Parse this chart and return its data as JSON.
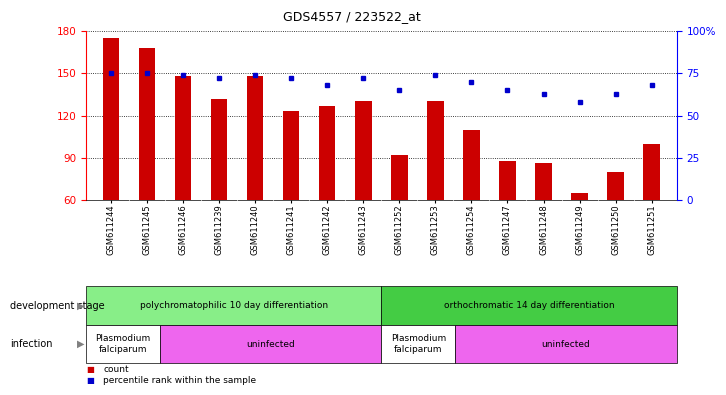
{
  "title": "GDS4557 / 223522_at",
  "samples": [
    "GSM611244",
    "GSM611245",
    "GSM611246",
    "GSM611239",
    "GSM611240",
    "GSM611241",
    "GSM611242",
    "GSM611243",
    "GSM611252",
    "GSM611253",
    "GSM611254",
    "GSM611247",
    "GSM611248",
    "GSM611249",
    "GSM611250",
    "GSM611251"
  ],
  "counts": [
    175,
    168,
    148,
    132,
    148,
    123,
    127,
    130,
    92,
    130,
    110,
    88,
    86,
    65,
    80,
    100
  ],
  "percentiles": [
    75,
    75,
    74,
    72,
    74,
    72,
    68,
    72,
    65,
    74,
    70,
    65,
    63,
    58,
    63,
    68
  ],
  "ylim_left": [
    60,
    180
  ],
  "ylim_right": [
    0,
    100
  ],
  "yticks_left": [
    60,
    90,
    120,
    150,
    180
  ],
  "yticks_right": [
    0,
    25,
    50,
    75,
    100
  ],
  "bar_color": "#cc0000",
  "dot_color": "#0000cc",
  "xticklabel_bg": "#d8d8d8",
  "dev_stage_groups": [
    {
      "label": "polychromatophilic 10 day differentiation",
      "start": 0,
      "end": 7,
      "color": "#88ee88"
    },
    {
      "label": "orthochromatic 14 day differentiation",
      "start": 8,
      "end": 15,
      "color": "#44cc44"
    }
  ],
  "infection_groups": [
    {
      "label": "Plasmodium\nfalciparum",
      "start": 0,
      "end": 1,
      "color": "#ffffff"
    },
    {
      "label": "uninfected",
      "start": 2,
      "end": 7,
      "color": "#ee66ee"
    },
    {
      "label": "Plasmodium\nfalciparum",
      "start": 8,
      "end": 9,
      "color": "#ffffff"
    },
    {
      "label": "uninfected",
      "start": 10,
      "end": 15,
      "color": "#ee66ee"
    }
  ],
  "legend_count_label": "count",
  "legend_pct_label": "percentile rank within the sample",
  "dev_stage_label": "development stage",
  "infection_label": "infection"
}
